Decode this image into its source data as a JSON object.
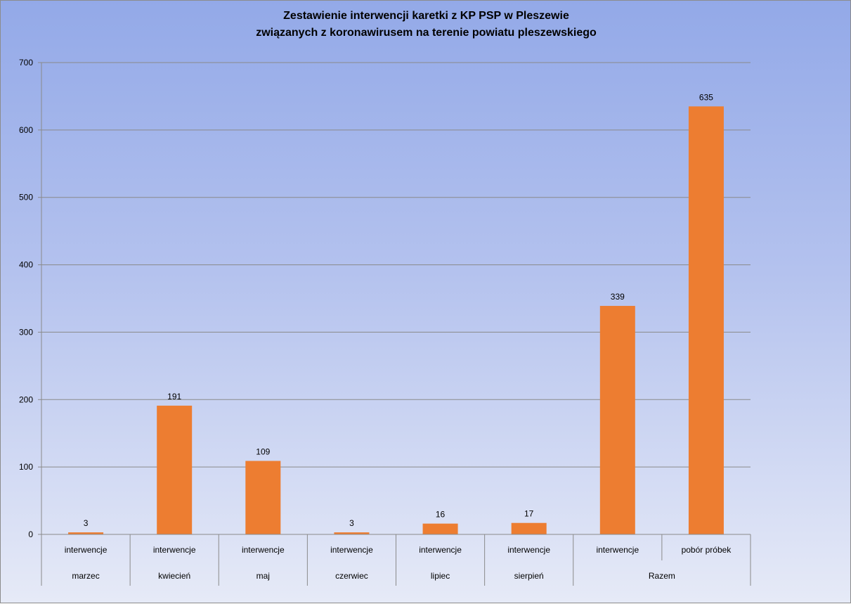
{
  "chart_data": {
    "type": "bar",
    "title_lines": [
      "Zestawienie interwencji karetki z KP PSP w Pleszewie",
      "związanych z koronawirusem na terenie powiatu pleszewskiego"
    ],
    "categories": [
      {
        "sub": "interwencje",
        "group": "marzec"
      },
      {
        "sub": "interwencje",
        "group": "kwiecień"
      },
      {
        "sub": "interwencje",
        "group": "maj"
      },
      {
        "sub": "interwencje",
        "group": "czerwiec"
      },
      {
        "sub": "interwencje",
        "group": "lipiec"
      },
      {
        "sub": "interwencje",
        "group": "sierpień"
      },
      {
        "sub": "interwencje",
        "group": "Razem"
      },
      {
        "sub": "pobór próbek",
        "group": "Razem"
      }
    ],
    "groups": [
      "marzec",
      "kwiecień",
      "maj",
      "czerwiec",
      "lipiec",
      "sierpień",
      "Razem"
    ],
    "values": [
      3,
      191,
      109,
      3,
      16,
      17,
      339,
      635
    ],
    "ylim": [
      0,
      700
    ],
    "yticks": [
      0,
      100,
      200,
      300,
      400,
      500,
      600,
      700
    ],
    "grid": true,
    "legend": "none",
    "bar_color": "#ed7d31"
  }
}
